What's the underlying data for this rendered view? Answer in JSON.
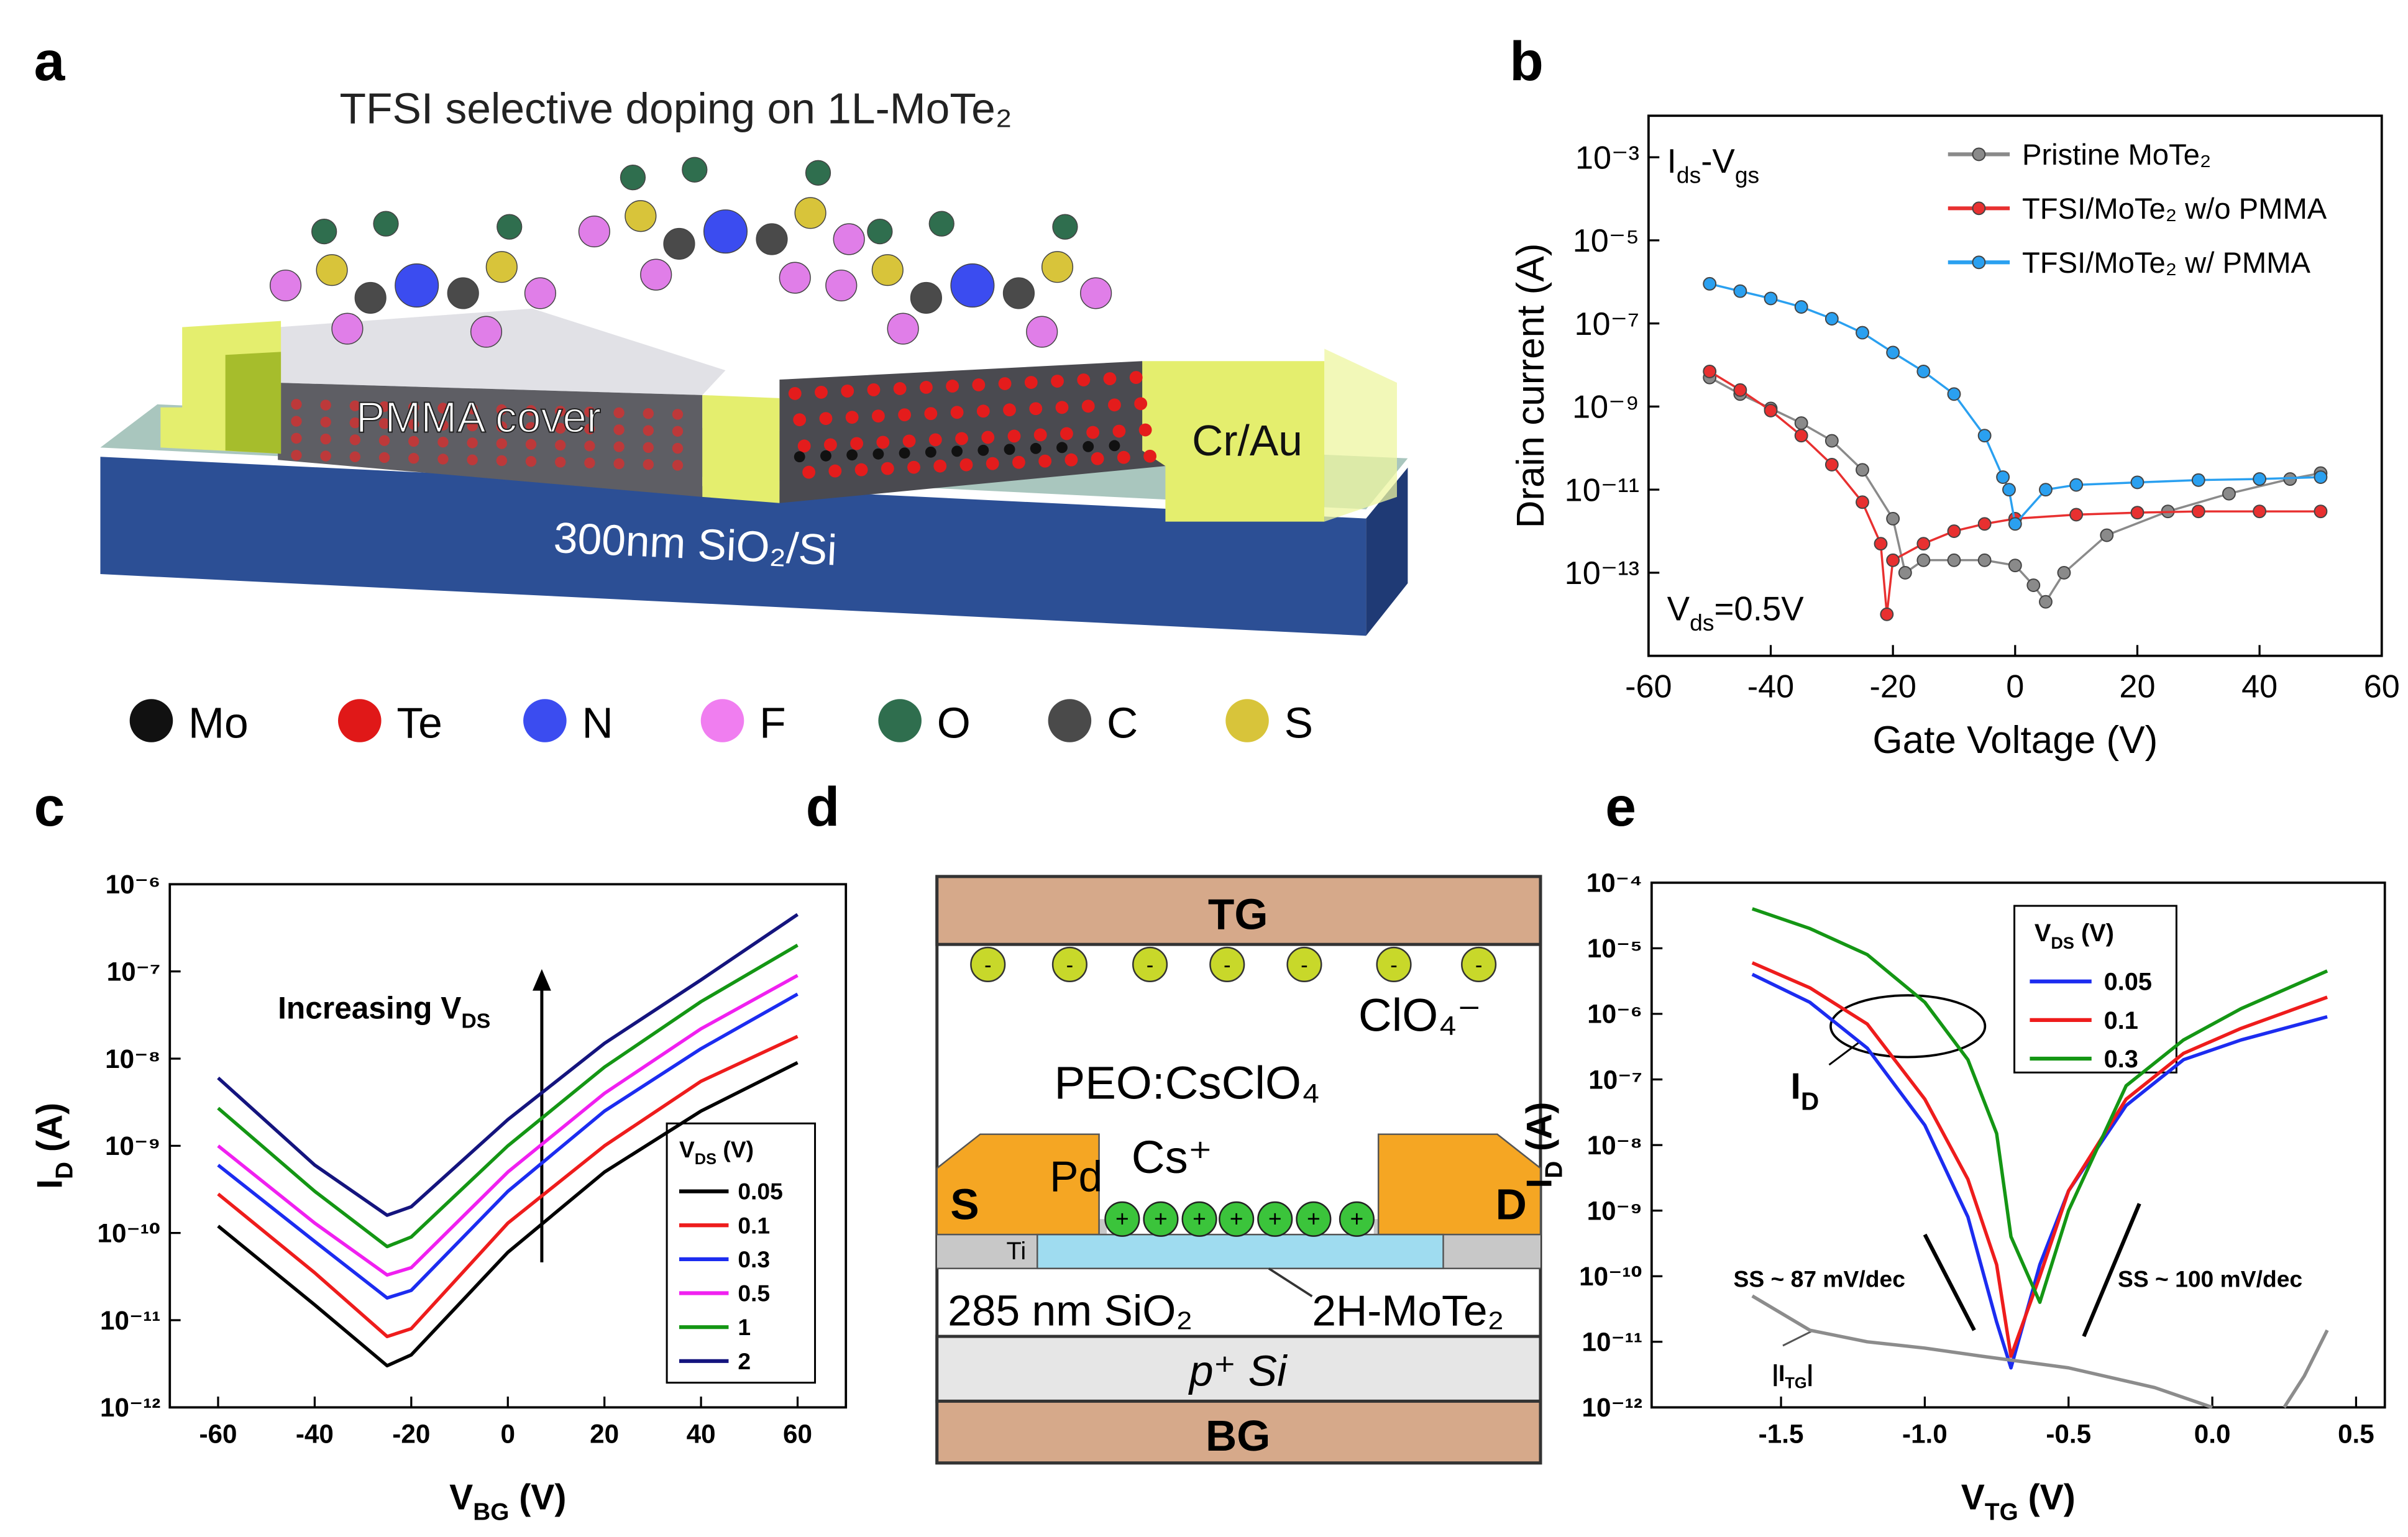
{
  "panel_labels": [
    "a",
    "b",
    "c",
    "d",
    "e"
  ],
  "diagram_a": {
    "title": "TFSI selective doping on 1L-MoTe₂",
    "cover": "PMMA cover",
    "electrode": "Cr/Au",
    "substrate": "300nm SiO₂/Si",
    "legend": [
      {
        "label": "Mo",
        "color": "#111111"
      },
      {
        "label": "Te",
        "color": "#e01818"
      },
      {
        "label": "N",
        "color": "#3b4cf0"
      },
      {
        "label": "F",
        "color": "#f07ef0"
      },
      {
        "label": "O",
        "color": "#2f6e4e"
      },
      {
        "label": "C",
        "color": "#4a4a4a"
      },
      {
        "label": "S",
        "color": "#d8c43a"
      }
    ]
  },
  "diagram_d": {
    "top_gate": "TG",
    "anion": "ClO₄⁻",
    "anion_sign": "-",
    "electrolyte": "PEO:CsClO₄",
    "metal": "Pd",
    "cation": "Cs⁺",
    "cation_sign": "+",
    "source": "S",
    "drain": "D",
    "adhesion": "Ti",
    "oxide": "285 nm SiO₂",
    "channel": "2H-MoTe₂",
    "substrate": "p⁺ Si",
    "back_gate": "BG"
  },
  "chart_data": [
    {
      "type": "line",
      "log_y": true,
      "markers": true,
      "xlabel": "Gate Voltage (V)",
      "ylabel": "Drain current (A)",
      "xlim": [
        -60,
        60
      ],
      "xticks": [
        -60,
        -40,
        -20,
        0,
        20,
        40,
        60
      ],
      "ylim": [
        1e-15,
        0.01
      ],
      "yticks": [
        {
          "value": 0.001,
          "label": "10⁻³"
        },
        {
          "value": 1e-05,
          "label": "10⁻⁵"
        },
        {
          "value": 1e-07,
          "label": "10⁻⁷"
        },
        {
          "value": 1e-09,
          "label": "10⁻⁹"
        },
        {
          "value": 1e-11,
          "label": "10⁻¹¹"
        },
        {
          "value": 1e-13,
          "label": "10⁻¹³"
        }
      ],
      "annotations": [
        [
          "I",
          {
            "sub": "ds"
          },
          "-V",
          {
            "sub": "gs"
          }
        ],
        [
          "V",
          {
            "sub": "ds"
          },
          "=0.5V"
        ]
      ],
      "series": [
        {
          "name": "Pristine MoTe₂",
          "color": "#8a8a8a",
          "x": [
            -50,
            -45,
            -40,
            -35,
            -30,
            -25,
            -20,
            -18,
            -15,
            -10,
            -5,
            0,
            3,
            5,
            8,
            15,
            25,
            35,
            45,
            50
          ],
          "values": [
            5e-09,
            2e-09,
            9e-10,
            4e-10,
            1.5e-10,
            3e-11,
            2e-12,
            1e-13,
            2e-13,
            2e-13,
            2e-13,
            1.5e-13,
            5e-14,
            2e-14,
            1e-13,
            8e-13,
            3e-12,
            8e-12,
            1.8e-11,
            2.5e-11
          ]
        },
        {
          "name": "TFSI/MoTe₂ w/o PMMA",
          "color": "#e83030",
          "x": [
            -50,
            -45,
            -40,
            -35,
            -30,
            -25,
            -22,
            -21,
            -20,
            -15,
            -10,
            -5,
            0,
            10,
            20,
            30,
            40,
            50
          ],
          "values": [
            7e-09,
            2.5e-09,
            8e-10,
            2e-10,
            4e-11,
            5e-12,
            5e-13,
            1e-14,
            2e-13,
            5e-13,
            1e-12,
            1.5e-12,
            2e-12,
            2.5e-12,
            2.8e-12,
            3e-12,
            3e-12,
            3e-12
          ]
        },
        {
          "name": "TFSI/MoTe₂ w/ PMMA",
          "color": "#2aa0f0",
          "x": [
            -50,
            -45,
            -40,
            -35,
            -30,
            -25,
            -20,
            -15,
            -10,
            -5,
            -2,
            -1,
            0,
            5,
            10,
            20,
            30,
            40,
            50
          ],
          "values": [
            9e-07,
            6e-07,
            4e-07,
            2.5e-07,
            1.3e-07,
            6e-08,
            2e-08,
            7e-09,
            2e-09,
            2e-10,
            2e-11,
            1e-11,
            1.5e-12,
            1e-11,
            1.3e-11,
            1.5e-11,
            1.7e-11,
            1.8e-11,
            2e-11
          ]
        }
      ]
    },
    {
      "type": "line",
      "log_y": true,
      "markers": false,
      "xlabel": [
        "V",
        {
          "sub": "BG"
        },
        " (V)"
      ],
      "ylabel": [
        "I",
        {
          "sub": "D"
        },
        " (A)"
      ],
      "xlim": [
        -70,
        70
      ],
      "xticks": [
        -60,
        -40,
        -20,
        0,
        20,
        40,
        60
      ],
      "ylim": [
        1e-12,
        1e-06
      ],
      "yticks": [
        {
          "value": 1e-06,
          "label": "10⁻⁶"
        },
        {
          "value": 1e-07,
          "label": "10⁻⁷"
        },
        {
          "value": 1e-08,
          "label": "10⁻⁸"
        },
        {
          "value": 1e-09,
          "label": "10⁻⁹"
        },
        {
          "value": 1e-10,
          "label": "10⁻¹⁰"
        },
        {
          "value": 1e-11,
          "label": "10⁻¹¹"
        },
        {
          "value": 1e-12,
          "label": "10⁻¹²"
        }
      ],
      "legend_title": [
        "V",
        {
          "sub": "DS"
        },
        " (V)"
      ],
      "annotations": [
        [
          "Increasing V",
          {
            "sub": "DS"
          }
        ]
      ],
      "series": [
        {
          "name": "0.05",
          "color": "#000000",
          "x": [
            -60,
            -40,
            -25,
            -20,
            0,
            20,
            40,
            60
          ],
          "values": [
            1.2e-10,
            1.5e-11,
            3e-12,
            4e-12,
            6e-11,
            5e-10,
            2.5e-09,
            9e-09
          ]
        },
        {
          "name": "0.1",
          "color": "#ee1c1c",
          "x": [
            -60,
            -40,
            -25,
            -20,
            0,
            20,
            40,
            60
          ],
          "values": [
            2.8e-10,
            3.5e-11,
            6.5e-12,
            8e-12,
            1.3e-10,
            1e-09,
            5.5e-09,
            1.8e-08
          ]
        },
        {
          "name": "0.3",
          "color": "#1c2cf0",
          "x": [
            -60,
            -40,
            -25,
            -20,
            0,
            20,
            40,
            60
          ],
          "values": [
            6e-10,
            8e-11,
            1.8e-11,
            2.2e-11,
            3e-10,
            2.5e-09,
            1.3e-08,
            5.5e-08
          ]
        },
        {
          "name": "0.5",
          "color": "#f020f0",
          "x": [
            -60,
            -40,
            -25,
            -20,
            0,
            20,
            40,
            60
          ],
          "values": [
            1e-09,
            1.3e-10,
            3.3e-11,
            4e-11,
            5e-10,
            4e-09,
            2.2e-08,
            9e-08
          ]
        },
        {
          "name": "1",
          "color": "#149614",
          "x": [
            -60,
            -40,
            -25,
            -20,
            0,
            20,
            40,
            60
          ],
          "values": [
            2.7e-09,
            3e-10,
            7e-11,
            9e-11,
            1e-09,
            8e-09,
            4.5e-08,
            2e-07
          ]
        },
        {
          "name": "2",
          "color": "#14147e",
          "x": [
            -60,
            -40,
            -25,
            -20,
            0,
            20,
            40,
            60
          ],
          "values": [
            6e-09,
            6e-10,
            1.6e-10,
            2e-10,
            2e-09,
            1.5e-08,
            8e-08,
            4.5e-07
          ]
        }
      ]
    },
    {
      "type": "line",
      "log_y": true,
      "markers": false,
      "xlabel": [
        "V",
        {
          "sub": "TG"
        },
        " (V)"
      ],
      "ylabel": [
        "I",
        {
          "sub": "D"
        },
        " (A)"
      ],
      "xlim": [
        -1.95,
        0.6
      ],
      "xticks": [
        -1.5,
        {
          "value": -1.0,
          "label": "-1.0"
        },
        -0.5,
        {
          "value": 0,
          "label": "0.0"
        },
        0.5
      ],
      "ylim": [
        1e-12,
        0.0001
      ],
      "yticks": [
        {
          "value": 0.0001,
          "label": "10⁻⁴"
        },
        {
          "value": 1e-05,
          "label": "10⁻⁵"
        },
        {
          "value": 1e-06,
          "label": "10⁻⁶"
        },
        {
          "value": 1e-07,
          "label": "10⁻⁷"
        },
        {
          "value": 1e-08,
          "label": "10⁻⁸"
        },
        {
          "value": 1e-09,
          "label": "10⁻⁹"
        },
        {
          "value": 1e-10,
          "label": "10⁻¹⁰"
        },
        {
          "value": 1e-11,
          "label": "10⁻¹¹"
        },
        {
          "value": 1e-12,
          "label": "10⁻¹²"
        }
      ],
      "legend_title": [
        "V",
        {
          "sub": "DS"
        },
        " (V)"
      ],
      "annotations": [
        [
          "I",
          {
            "sub": "D"
          }
        ],
        "SS ~ 87 mV/dec",
        "SS ~ 100 mV/dec",
        [
          "|I",
          {
            "sub": "TG"
          },
          "|"
        ]
      ],
      "series": [
        {
          "name": "0.05",
          "color": "#1c2cf0",
          "x": [
            -1.6,
            -1.4,
            -1.2,
            -1.0,
            -0.85,
            -0.75,
            -0.7,
            -0.6,
            -0.5,
            -0.3,
            -0.1,
            0.1,
            0.4
          ],
          "values": [
            4e-06,
            1.5e-06,
            3e-07,
            2e-08,
            8e-10,
            2e-11,
            4e-12,
            1.5e-10,
            2e-09,
            4e-08,
            2e-07,
            4e-07,
            9e-07
          ]
        },
        {
          "name": "0.1",
          "color": "#ee1c1c",
          "x": [
            -1.6,
            -1.4,
            -1.2,
            -1.0,
            -0.85,
            -0.75,
            -0.7,
            -0.6,
            -0.5,
            -0.3,
            -0.1,
            0.1,
            0.4
          ],
          "values": [
            6e-06,
            2.5e-06,
            7e-07,
            5e-08,
            3e-09,
            1.5e-10,
            6e-12,
            1e-10,
            2e-09,
            5e-08,
            2.5e-07,
            6e-07,
            1.8e-06
          ]
        },
        {
          "name": "0.3",
          "color": "#149614",
          "x": [
            -1.6,
            -1.4,
            -1.2,
            -1.0,
            -0.85,
            -0.75,
            -0.7,
            -0.6,
            -0.5,
            -0.3,
            -0.1,
            0.1,
            0.4
          ],
          "values": [
            4e-05,
            2e-05,
            8e-06,
            1.5e-06,
            2e-07,
            1.5e-08,
            4e-10,
            4e-11,
            1e-09,
            8e-08,
            4e-07,
            1.2e-06,
            4.5e-06
          ]
        },
        {
          "color": "#8c8c8c",
          "x": [
            -1.6,
            -1.4,
            -1.2,
            -1.0,
            -0.8,
            -0.5,
            -0.2,
            0,
            0.1,
            0.25,
            0.32,
            0.4
          ],
          "values": [
            5e-11,
            1.5e-11,
            1e-11,
            8e-12,
            6e-12,
            4e-12,
            2e-12,
            1e-12,
            null,
            1e-12,
            3e-12,
            1.5e-11
          ]
        }
      ]
    }
  ]
}
